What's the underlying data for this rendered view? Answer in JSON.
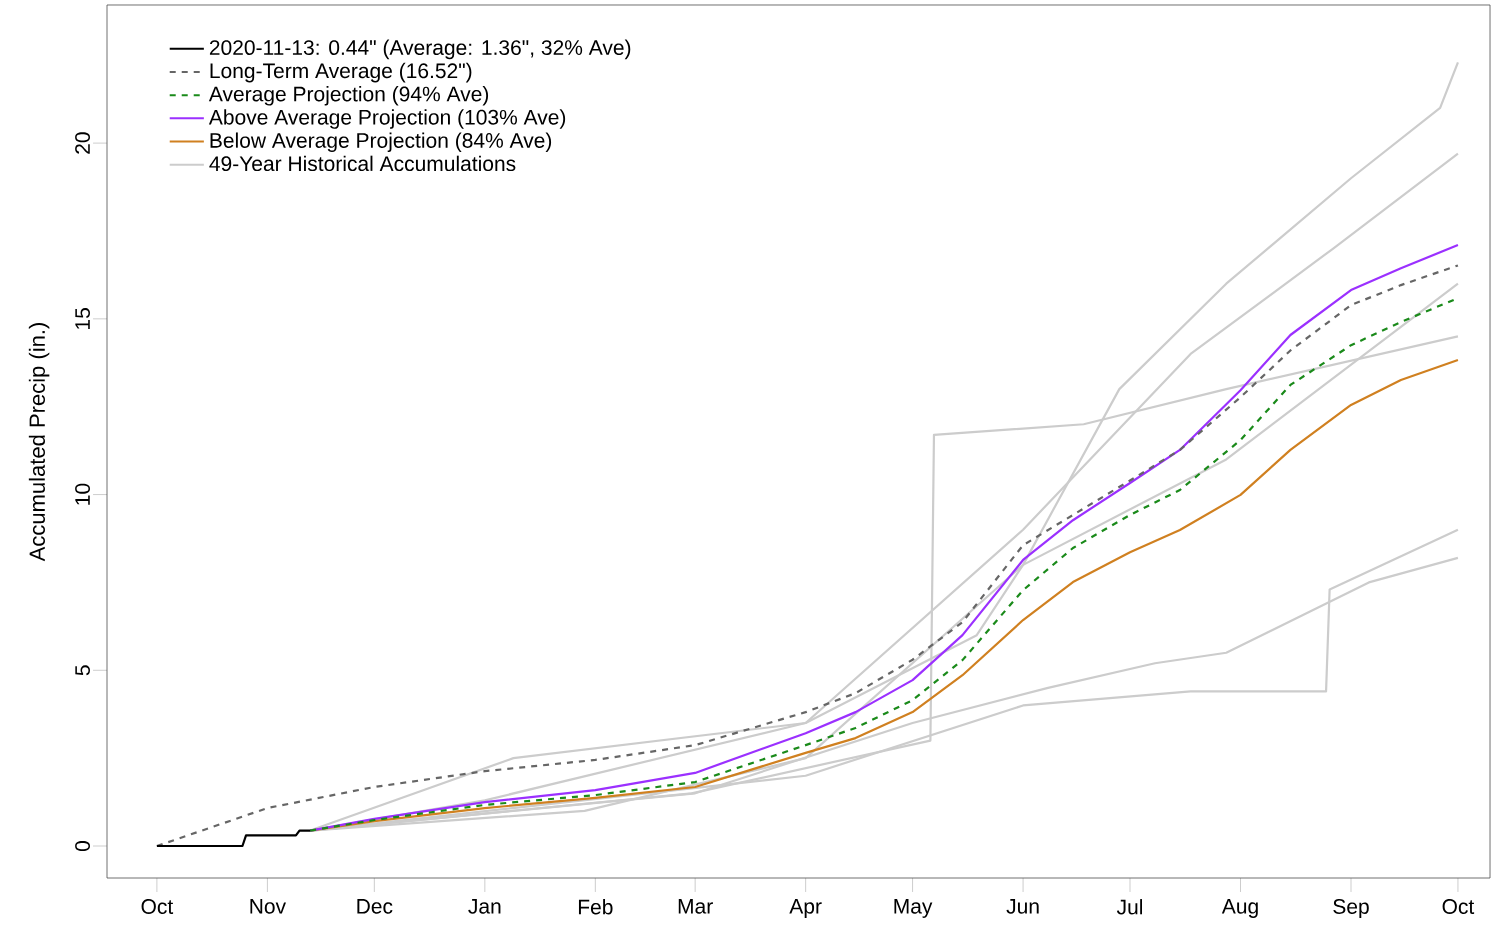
{
  "chart_data": {
    "type": "line",
    "ylabel": "Accumulated Precip (in.)",
    "xlim": [
      "2020-09-17",
      "2021-10-10"
    ],
    "ylim": [
      -0.91,
      23.93
    ],
    "xticks": [
      {
        "value": "2020-10-01",
        "label": "Oct"
      },
      {
        "value": "2020-11-01",
        "label": "Nov"
      },
      {
        "value": "2020-12-01",
        "label": "Dec"
      },
      {
        "value": "2021-01-01",
        "label": "Jan"
      },
      {
        "value": "2021-02-01",
        "label": "Feb"
      },
      {
        "value": "2021-03-01",
        "label": "Mar"
      },
      {
        "value": "2021-04-01",
        "label": "Apr"
      },
      {
        "value": "2021-05-01",
        "label": "May"
      },
      {
        "value": "2021-06-01",
        "label": "Jun"
      },
      {
        "value": "2021-07-01",
        "label": "Jul"
      },
      {
        "value": "2021-08-01",
        "label": "Aug"
      },
      {
        "value": "2021-09-01",
        "label": "Sep"
      },
      {
        "value": "2021-10-01",
        "label": "Oct"
      }
    ],
    "yticks": [
      0,
      5,
      10,
      15,
      20
    ],
    "legend": "top left",
    "series": [
      {
        "name": "2020-11-13: 0.44\" (Average: 1.36\", 32% Ave)",
        "color": "#000000",
        "line_style": "solid",
        "x": [
          "2020-10-01",
          "2020-10-25",
          "2020-10-26",
          "2020-11-09",
          "2020-11-10",
          "2020-11-13"
        ],
        "values": [
          0,
          0,
          0.3,
          0.3,
          0.44,
          0.44
        ]
      },
      {
        "name": "Long-Term Average (16.52\")",
        "color": "#666666",
        "line_style": "dashed",
        "x": [
          "2020-10-01",
          "2020-11-01",
          "2020-12-01",
          "2021-01-01",
          "2021-02-01",
          "2021-03-01",
          "2021-04-01",
          "2021-04-15",
          "2021-05-01",
          "2021-05-15",
          "2021-06-01",
          "2021-06-15",
          "2021-07-01",
          "2021-07-15",
          "2021-08-01",
          "2021-08-15",
          "2021-09-01",
          "2021-09-15",
          "2021-10-01"
        ],
        "values": [
          0,
          1.08,
          1.68,
          2.13,
          2.45,
          2.87,
          3.81,
          4.35,
          5.3,
          6.37,
          8.56,
          9.42,
          10.4,
          11.27,
          12.77,
          14.1,
          15.39,
          15.96,
          16.52
        ]
      },
      {
        "name": "Average Projection (94% Ave)",
        "color": "#1a8a1a",
        "line_style": "dashed",
        "x": [
          "2020-11-13",
          "2020-12-01",
          "2021-01-01",
          "2021-02-01",
          "2021-03-01",
          "2021-04-01",
          "2021-04-15",
          "2021-05-01",
          "2021-05-15",
          "2021-06-01",
          "2021-06-15",
          "2021-07-01",
          "2021-07-15",
          "2021-08-01",
          "2021-08-15",
          "2021-09-01",
          "2021-09-15",
          "2021-10-01"
        ],
        "values": [
          0.44,
          0.74,
          1.17,
          1.45,
          1.82,
          2.87,
          3.36,
          4.15,
          5.29,
          7.28,
          8.48,
          9.42,
          10.13,
          11.55,
          13.12,
          14.25,
          14.91,
          15.59
        ]
      },
      {
        "name": "Above Average Projection (103% Ave)",
        "color": "#9b30ff",
        "line_style": "solid",
        "x": [
          "2020-11-13",
          "2020-12-01",
          "2021-01-01",
          "2021-02-01",
          "2021-03-01",
          "2021-04-01",
          "2021-04-15",
          "2021-05-01",
          "2021-05-15",
          "2021-06-01",
          "2021-06-15",
          "2021-07-01",
          "2021-07-15",
          "2021-08-01",
          "2021-08-15",
          "2021-09-01",
          "2021-09-15",
          "2021-10-01"
        ],
        "values": [
          0.44,
          0.77,
          1.25,
          1.59,
          2.08,
          3.21,
          3.81,
          4.72,
          6.0,
          8.14,
          9.27,
          10.33,
          11.27,
          12.97,
          14.54,
          15.82,
          16.44,
          17.1
        ]
      },
      {
        "name": "Below Average Projection (84% Ave)",
        "color": "#d08020",
        "line_style": "solid",
        "x": [
          "2020-11-13",
          "2020-12-01",
          "2021-01-01",
          "2021-02-01",
          "2021-03-01",
          "2021-04-01",
          "2021-04-15",
          "2021-05-01",
          "2021-05-15",
          "2021-06-01",
          "2021-06-15",
          "2021-07-01",
          "2021-07-15",
          "2021-08-01",
          "2021-08-15",
          "2021-09-01",
          "2021-09-15",
          "2021-10-01"
        ],
        "values": [
          0.44,
          0.71,
          1.08,
          1.37,
          1.68,
          2.65,
          3.07,
          3.81,
          4.86,
          6.43,
          7.51,
          8.36,
          8.99,
          9.99,
          11.27,
          12.55,
          13.26,
          13.83
        ]
      },
      {
        "name": "49-Year Historical Accumulations",
        "color": "#cccccc",
        "line_style": "solid",
        "x": [
          "2020-11-13",
          "2021-01-01",
          "2021-04-01",
          "2021-05-19",
          "2021-06-01",
          "2021-06-28",
          "2021-07-28",
          "2021-09-01",
          "2021-09-26",
          "2021-10-01"
        ],
        "values": [
          0.44,
          1.3,
          3.5,
          6,
          8,
          13,
          16,
          19,
          21,
          22.3
        ]
      },
      {
        "color": "#cccccc",
        "line_style": "solid",
        "x": [
          "2020-11-13",
          "2021-03-01",
          "2021-05-01",
          "2021-06-08",
          "2021-07-08",
          "2021-07-28",
          "2021-09-06",
          "2021-10-01"
        ],
        "values": [
          0.44,
          1.5,
          3.5,
          4.5,
          5.2,
          5.5,
          7.5,
          8.2
        ]
      },
      {
        "color": "#cccccc",
        "line_style": "solid",
        "x": [
          "2020-11-13",
          "2021-04-01",
          "2021-06-01",
          "2021-07-18",
          "2021-08-25",
          "2021-08-26",
          "2021-10-01"
        ],
        "values": [
          0.44,
          2,
          4,
          4.4,
          4.4,
          7.3,
          9
        ]
      },
      {
        "color": "#cccccc",
        "line_style": "solid",
        "x": [
          "2020-11-13",
          "2021-02-28",
          "2021-05-06",
          "2021-05-07",
          "2021-06-18",
          "2021-07-28",
          "2021-10-01"
        ],
        "values": [
          0.44,
          1.5,
          3,
          11.7,
          12,
          13,
          14.5
        ]
      },
      {
        "color": "#cccccc",
        "line_style": "solid",
        "x": [
          "2020-11-13",
          "2021-01-29",
          "2021-04-01",
          "2021-06-01",
          "2021-07-28",
          "2021-10-01"
        ],
        "values": [
          0.44,
          1,
          2.5,
          8,
          11,
          16
        ]
      },
      {
        "color": "#cccccc",
        "line_style": "solid",
        "x": [
          "2020-11-13",
          "2021-01-09",
          "2021-04-01",
          "2021-06-01",
          "2021-07-18",
          "2021-08-27",
          "2021-10-01"
        ],
        "values": [
          0.44,
          2.5,
          3.5,
          9,
          14,
          17,
          19.7
        ]
      }
    ]
  }
}
